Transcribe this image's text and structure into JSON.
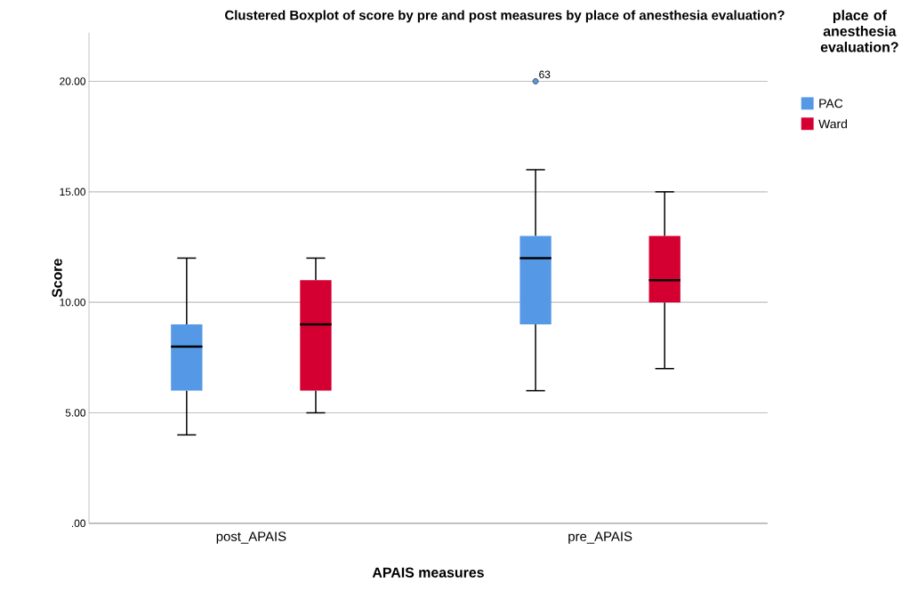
{
  "chart_data": {
    "type": "box",
    "title": "Clustered Boxplot of score by pre and post measures by place of anesthesia evaluation?",
    "xlabel": "APAIS measures",
    "ylabel": "Score",
    "legend_title": "place of anesthesia evaluation?",
    "categories": [
      "post_APAIS",
      "pre_APAIS"
    ],
    "series": [
      {
        "name": "PAC",
        "color": "#5599e6",
        "boxes": [
          {
            "low": 4,
            "q1": 6,
            "median": 8,
            "q3": 9,
            "high": 12
          },
          {
            "low": 6,
            "q1": 9,
            "median": 12,
            "q3": 13,
            "high": 16,
            "outliers": [
              20
            ]
          }
        ]
      },
      {
        "name": "Ward",
        "color": "#d50032",
        "boxes": [
          {
            "low": 5,
            "q1": 6,
            "median": 9,
            "q3": 11,
            "high": 12
          },
          {
            "low": 7,
            "q1": 10,
            "median": 11,
            "q3": 13,
            "high": 15
          }
        ]
      }
    ],
    "ylim": [
      0,
      22.2
    ],
    "yticks": [
      {
        "value": 0,
        "label": ".00"
      },
      {
        "value": 5,
        "label": "5.00"
      },
      {
        "value": 10,
        "label": "10.00"
      },
      {
        "value": 15,
        "label": "15.00"
      },
      {
        "value": 20,
        "label": "20.00"
      }
    ],
    "annotations": [
      "63"
    ],
    "grid": "y",
    "legend": "top right"
  }
}
